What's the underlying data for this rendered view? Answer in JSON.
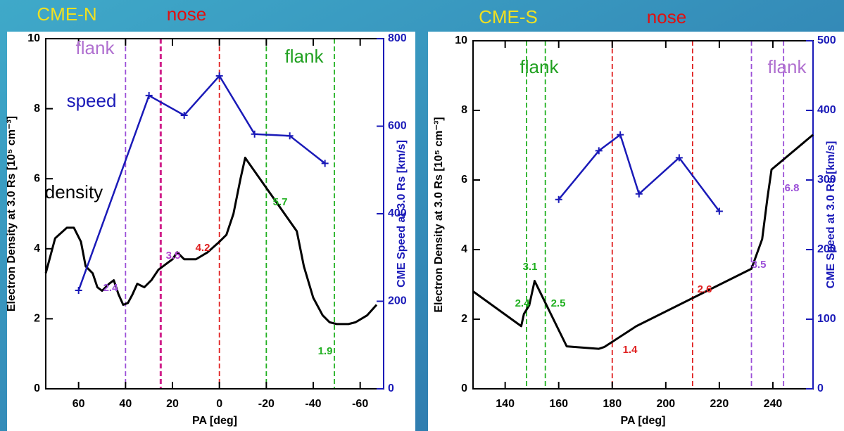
{
  "chart_data": [
    {
      "type": "line",
      "xlabel": "PA [deg]",
      "ylabel": "Electron Density at 3.0 Rs [10⁵ cm⁻³]",
      "y2label": "CME Speed at 3.0 Rs [km/s]",
      "xlim": [
        74,
        -70
      ],
      "xticks": [
        60,
        40,
        20,
        0,
        -20,
        -40,
        -60
      ],
      "ylim": [
        0,
        10
      ],
      "yticks": [
        0,
        2,
        4,
        6,
        8,
        10
      ],
      "y2lim": [
        0,
        800
      ],
      "y2ticks": [
        0,
        200,
        400,
        600,
        800
      ],
      "series": [
        {
          "name": "density",
          "color": "#000000",
          "x": [
            74,
            70,
            65,
            62,
            59,
            57,
            54,
            52,
            50,
            47,
            45,
            43,
            41,
            39,
            37,
            35,
            32,
            29,
            26,
            24,
            22,
            20,
            18,
            15,
            10,
            5,
            0,
            -3,
            -6,
            -9,
            -11,
            -12,
            -33,
            -36,
            -40,
            -44,
            -47,
            -50,
            -55,
            -58,
            -63,
            -67
          ],
          "values": [
            3.3,
            4.3,
            4.6,
            4.6,
            4.2,
            3.5,
            3.3,
            2.9,
            2.8,
            3.0,
            3.1,
            2.7,
            2.4,
            2.45,
            2.7,
            3.0,
            2.9,
            3.1,
            3.4,
            3.5,
            3.6,
            3.7,
            3.9,
            3.7,
            3.7,
            3.9,
            4.2,
            4.4,
            5.0,
            6.0,
            6.6,
            6.5,
            4.5,
            3.5,
            2.6,
            2.1,
            1.9,
            1.85,
            1.85,
            1.9,
            2.1,
            2.4
          ]
        },
        {
          "name": "speed",
          "color": "#1a1ab8",
          "axis": "y2",
          "x": [
            60,
            30,
            15,
            0,
            -15,
            -30,
            -45
          ],
          "values": [
            225,
            670,
            625,
            715,
            582,
            578,
            515
          ]
        }
      ],
      "vlines": [
        {
          "x": 40,
          "color": "#9b4fd8"
        },
        {
          "x": 25,
          "color": "#d0208a"
        },
        {
          "x": 0,
          "color": "#e02020"
        },
        {
          "x": -20,
          "color": "#20b020"
        },
        {
          "x": -49,
          "color": "#20b020"
        }
      ],
      "annotations": [
        {
          "text": "2.4",
          "color": "#9b4fd8"
        },
        {
          "text": "3.5",
          "color": "#b040d0"
        },
        {
          "text": "4.2",
          "color": "#e02020"
        },
        {
          "text": "5.7",
          "color": "#20b020"
        },
        {
          "text": "1.9",
          "color": "#20b020"
        }
      ],
      "labels": [
        {
          "text": "CME-N",
          "color": "#f0e020"
        },
        {
          "text": "nose",
          "color": "#e01010"
        },
        {
          "text": "flank",
          "color": "#b070d0"
        },
        {
          "text": "flank",
          "color": "#20a020"
        }
      ]
    },
    {
      "type": "line",
      "xlabel": "PA [deg]",
      "ylabel": "Electron Density at 3.0 Rs [10⁵ cm⁻³]",
      "y2label": "CME Speed at 3.0 Rs [km/s]",
      "xlim": [
        128,
        255
      ],
      "xticks": [
        140,
        160,
        180,
        200,
        220,
        240
      ],
      "ylim": [
        0,
        10
      ],
      "yticks": [
        0,
        2,
        4,
        6,
        8,
        10
      ],
      "y2lim": [
        0,
        500
      ],
      "y2ticks": [
        0,
        100,
        200,
        300,
        400,
        500
      ],
      "series": [
        {
          "color": "#000000",
          "x": [
            128,
            146,
            147,
            149,
            151,
            163,
            175,
            177,
            189,
            232,
            236,
            238,
            239.5,
            255
          ],
          "values": [
            2.8,
            1.8,
            2.15,
            2.4,
            3.1,
            1.22,
            1.15,
            1.2,
            1.8,
            3.45,
            4.3,
            5.5,
            6.3,
            7.3
          ]
        },
        {
          "color": "#1a1ab8",
          "axis": "y2",
          "x": [
            160,
            175,
            183,
            190,
            205,
            220
          ],
          "values": [
            272,
            342,
            365,
            280,
            332,
            255
          ]
        }
      ],
      "vlines": [
        {
          "x": 148,
          "color": "#20b020"
        },
        {
          "x": 155,
          "color": "#20b020"
        },
        {
          "x": 180,
          "color": "#e02020"
        },
        {
          "x": 210,
          "color": "#e02020"
        },
        {
          "x": 232,
          "color": "#9b4fd8"
        },
        {
          "x": 244,
          "color": "#9b4fd8"
        }
      ],
      "annotations": [
        {
          "text": "2.4",
          "color": "#20b020"
        },
        {
          "text": "3.1",
          "color": "#20b020"
        },
        {
          "text": "2.5",
          "color": "#20b020"
        },
        {
          "text": "1.4",
          "color": "#e02020"
        },
        {
          "text": "2.6",
          "color": "#e02020"
        },
        {
          "text": "3.5",
          "color": "#9b4fd8"
        },
        {
          "text": "6.8",
          "color": "#9b4fd8"
        }
      ],
      "labels": [
        {
          "text": "CME-S",
          "color": "#f0e020"
        },
        {
          "text": "nose",
          "color": "#e01010"
        },
        {
          "text": "flank",
          "color": "#20a020"
        },
        {
          "text": "flank",
          "color": "#b070d0"
        }
      ]
    }
  ]
}
